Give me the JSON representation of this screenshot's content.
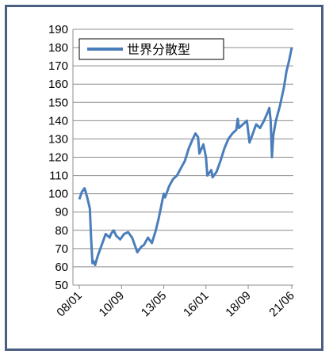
{
  "chart_data": {
    "type": "line",
    "title": "",
    "xlabel": "",
    "ylabel": "",
    "ylim": [
      50,
      190
    ],
    "y_ticks": [
      50,
      60,
      70,
      80,
      90,
      100,
      110,
      120,
      130,
      140,
      150,
      160,
      170,
      180,
      190
    ],
    "x_ticks": [
      "08/01",
      "10/09",
      "13/05",
      "16/01",
      "18/09",
      "21/06"
    ],
    "grid": "horizontal",
    "legend_position": "top-left",
    "line_color": "#4a7ebb",
    "series": [
      {
        "name": "世界分散型",
        "x": [
          "2008-01",
          "2008-03",
          "2008-05",
          "2008-07",
          "2008-09",
          "2008-10",
          "2008-11",
          "2008-12",
          "2009-01",
          "2009-03",
          "2009-06",
          "2009-09",
          "2009-12",
          "2010-01",
          "2010-03",
          "2010-05",
          "2010-08",
          "2010-11",
          "2011-02",
          "2011-05",
          "2011-08",
          "2011-09",
          "2011-12",
          "2012-02",
          "2012-05",
          "2012-08",
          "2012-11",
          "2013-01",
          "2013-03",
          "2013-05",
          "2013-06",
          "2013-09",
          "2013-12",
          "2014-03",
          "2014-06",
          "2014-09",
          "2014-12",
          "2015-03",
          "2015-05",
          "2015-07",
          "2015-08",
          "2015-11",
          "2016-01",
          "2016-02",
          "2016-05",
          "2016-06",
          "2016-09",
          "2016-12",
          "2017-03",
          "2017-06",
          "2017-09",
          "2017-12",
          "2018-01",
          "2018-02",
          "2018-05",
          "2018-08",
          "2018-10",
          "2018-12",
          "2019-03",
          "2019-06",
          "2019-09",
          "2019-12",
          "2020-01",
          "2020-02",
          "2020-03",
          "2020-04",
          "2020-06",
          "2020-09",
          "2020-12",
          "2021-02",
          "2021-04",
          "2021-06"
        ],
        "values": [
          97,
          101,
          103,
          98,
          92,
          75,
          62,
          63,
          61,
          66,
          72,
          78,
          76,
          78,
          80,
          77,
          75,
          78,
          79,
          76,
          70,
          68,
          71,
          72,
          76,
          73,
          80,
          86,
          93,
          100,
          98,
          104,
          108,
          110,
          114,
          118,
          125,
          130,
          133,
          131,
          122,
          127,
          120,
          110,
          113,
          109,
          112,
          118,
          125,
          130,
          133,
          135,
          141,
          136,
          138,
          140,
          128,
          132,
          138,
          136,
          140,
          145,
          147,
          140,
          120,
          132,
          140,
          148,
          158,
          167,
          173,
          180
        ]
      }
    ]
  }
}
